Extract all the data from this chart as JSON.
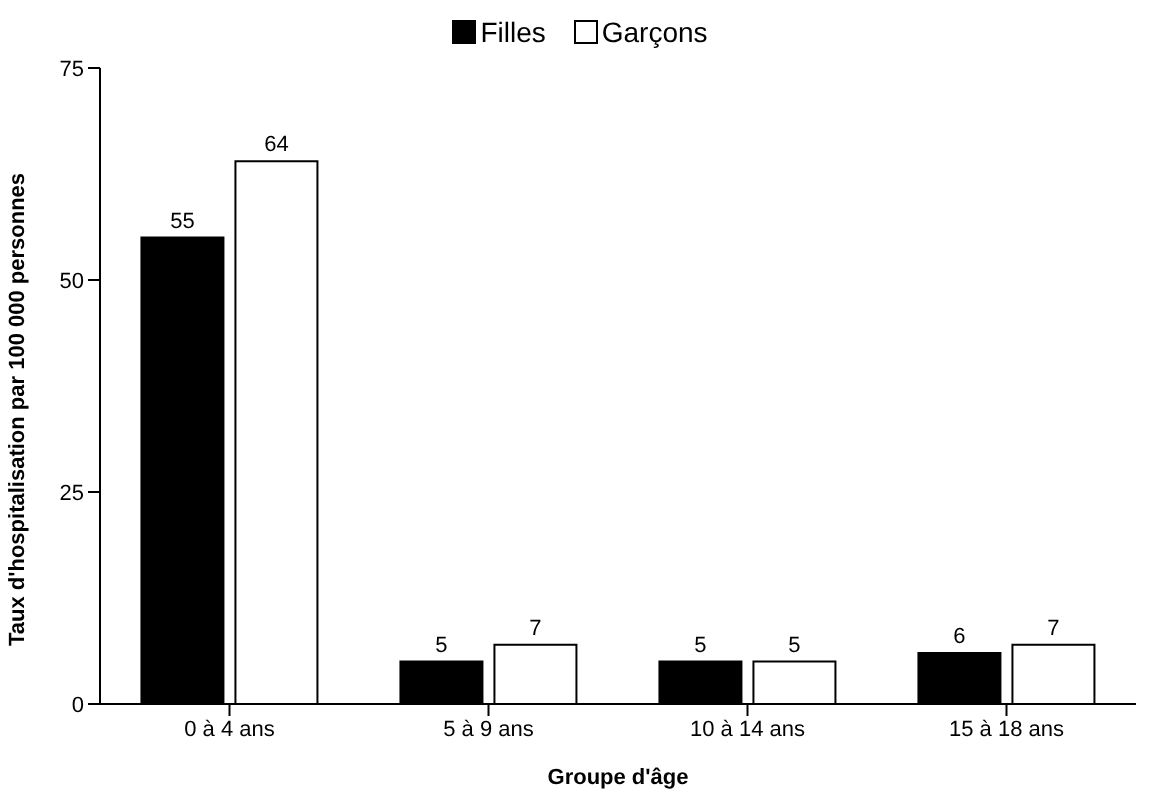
{
  "chart_data": {
    "type": "bar",
    "xlabel": "Groupe d'âge",
    "ylabel": "Taux d'hospitalisation par 100 000 personnes",
    "categories": [
      "0 à 4 ans",
      "5 à 9 ans",
      "10 à 14 ans",
      "15 à 18 ans"
    ],
    "series": [
      {
        "name": "Filles",
        "color": "#000000",
        "values": [
          55,
          5,
          5,
          6
        ]
      },
      {
        "name": "Garçons",
        "color": "#ffffff",
        "values": [
          64,
          7,
          5,
          7
        ]
      }
    ],
    "ylim": [
      0,
      75
    ],
    "yticks": [
      0,
      25,
      50,
      75
    ],
    "grid": false,
    "legend": "top",
    "data_labels": true
  }
}
